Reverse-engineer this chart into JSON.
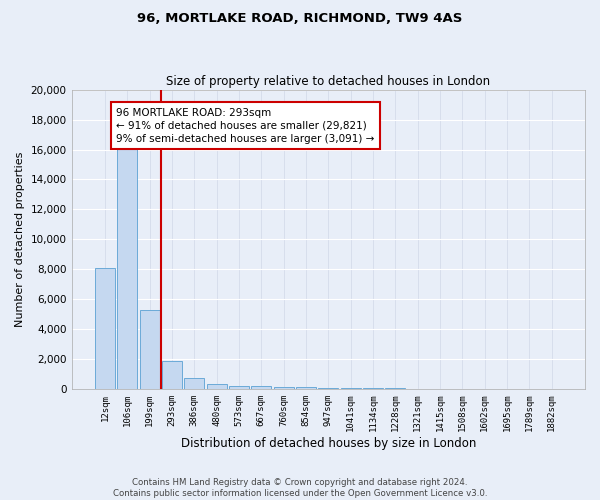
{
  "title": "96, MORTLAKE ROAD, RICHMOND, TW9 4AS",
  "subtitle": "Size of property relative to detached houses in London",
  "xlabel": "Distribution of detached houses by size in London",
  "ylabel": "Number of detached properties",
  "bar_color": "#c5d8f0",
  "bar_edge_color": "#6baad8",
  "background_color": "#e8eef8",
  "grid_color": "#d0d8e8",
  "annotation_line_color": "#cc0000",
  "annotation_box_color": "#cc0000",
  "annotation_text": "96 MORTLAKE ROAD: 293sqm\n← 91% of detached houses are smaller (29,821)\n9% of semi-detached houses are larger (3,091) →",
  "footer_text": "Contains HM Land Registry data © Crown copyright and database right 2024.\nContains public sector information licensed under the Open Government Licence v3.0.",
  "bin_labels": [
    "12sqm",
    "106sqm",
    "199sqm",
    "293sqm",
    "386sqm",
    "480sqm",
    "573sqm",
    "667sqm",
    "760sqm",
    "854sqm",
    "947sqm",
    "1041sqm",
    "1134sqm",
    "1228sqm",
    "1321sqm",
    "1415sqm",
    "1508sqm",
    "1602sqm",
    "1695sqm",
    "1789sqm",
    "1882sqm"
  ],
  "bar_heights": [
    8100,
    16500,
    5300,
    1850,
    700,
    350,
    225,
    175,
    160,
    120,
    80,
    60,
    50,
    40,
    30,
    20,
    15,
    12,
    10,
    8,
    5
  ],
  "red_line_index": 3,
  "ylim": [
    0,
    20000
  ],
  "yticks": [
    0,
    2000,
    4000,
    6000,
    8000,
    10000,
    12000,
    14000,
    16000,
    18000,
    20000
  ]
}
